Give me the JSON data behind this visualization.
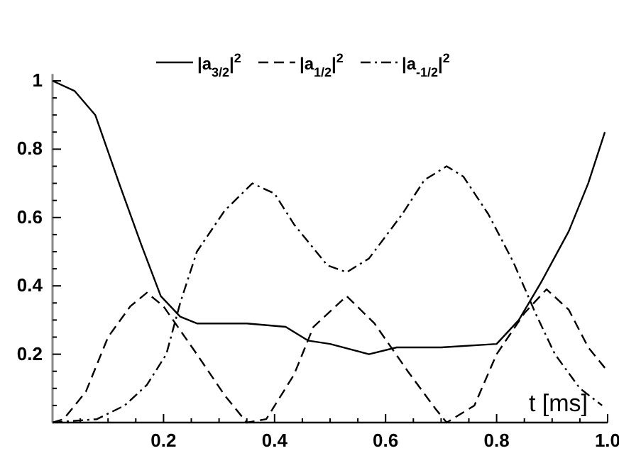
{
  "chart_data": {
    "type": "line",
    "xlabel": "t [ms]",
    "legend": "top",
    "xlim": [
      0,
      1.0
    ],
    "ylim": [
      0,
      1.02
    ],
    "xticks": [
      {
        "value": 0.05,
        "label": null
      },
      {
        "value": 0.1,
        "label": null
      },
      {
        "value": 0.15,
        "label": null
      },
      0.2,
      {
        "value": 0.25,
        "label": null
      },
      {
        "value": 0.3,
        "label": null
      },
      {
        "value": 0.35,
        "label": null
      },
      0.4,
      {
        "value": 0.45,
        "label": null
      },
      {
        "value": 0.5,
        "label": null
      },
      {
        "value": 0.55,
        "label": null
      },
      0.6,
      {
        "value": 0.65,
        "label": null
      },
      {
        "value": 0.7,
        "label": null
      },
      {
        "value": 0.75,
        "label": null
      },
      0.8,
      {
        "value": 0.85,
        "label": null
      },
      {
        "value": 0.9,
        "label": null
      },
      {
        "value": 0.95,
        "label": null
      },
      {
        "value": 1.0,
        "label": "1.0"
      }
    ],
    "yticks": [
      {
        "value": 0.05,
        "label": null
      },
      {
        "value": 0.1,
        "label": null
      },
      {
        "value": 0.15,
        "label": null
      },
      0.2,
      {
        "value": 0.25,
        "label": null
      },
      {
        "value": 0.3,
        "label": null
      },
      {
        "value": 0.35,
        "label": null
      },
      0.4,
      {
        "value": 0.45,
        "label": null
      },
      {
        "value": 0.5,
        "label": null
      },
      {
        "value": 0.55,
        "label": null
      },
      0.6,
      {
        "value": 0.65,
        "label": null
      },
      {
        "value": 0.7,
        "label": null
      },
      {
        "value": 0.75,
        "label": null
      },
      0.8,
      {
        "value": 0.85,
        "label": null
      },
      {
        "value": 0.9,
        "label": null
      },
      {
        "value": 0.95,
        "label": null
      },
      1
    ],
    "series": [
      {
        "name": "|a$_{3/2}$|$^{2}$",
        "color": "#000000",
        "line_style": "solid",
        "x": [
          0,
          0.04,
          0.077,
          0.12,
          0.16,
          0.195,
          0.23,
          0.26,
          0.3,
          0.35,
          0.42,
          0.46,
          0.5,
          0.57,
          0.62,
          0.7,
          0.8,
          0.84,
          0.88,
          0.93,
          0.965,
          0.995
        ],
        "values": [
          1.0,
          0.97,
          0.9,
          0.7,
          0.52,
          0.37,
          0.31,
          0.29,
          0.29,
          0.29,
          0.28,
          0.24,
          0.23,
          0.2,
          0.22,
          0.22,
          0.23,
          0.3,
          0.41,
          0.56,
          0.7,
          0.85
        ]
      },
      {
        "name": "|a$_{1/2}$|$^{2}$",
        "color": "#000000",
        "line_style": "dashed",
        "x": [
          0,
          0.02,
          0.06,
          0.1,
          0.14,
          0.17,
          0.2,
          0.26,
          0.31,
          0.35,
          0.385,
          0.435,
          0.47,
          0.53,
          0.58,
          0.64,
          0.69,
          0.71,
          0.76,
          0.8,
          0.85,
          0.89,
          0.93,
          0.965,
          0.995
        ],
        "values": [
          0,
          0.01,
          0.09,
          0.25,
          0.34,
          0.38,
          0.34,
          0.2,
          0.08,
          0.0,
          0.01,
          0.14,
          0.28,
          0.37,
          0.29,
          0.15,
          0.04,
          0.0,
          0.05,
          0.2,
          0.32,
          0.39,
          0.33,
          0.22,
          0.16
        ]
      },
      {
        "name": "|a$_{-1/2}$|$^{2}$",
        "color": "#000000",
        "line_style": "dashdot",
        "x": [
          0,
          0.08,
          0.13,
          0.17,
          0.205,
          0.23,
          0.26,
          0.31,
          0.36,
          0.4,
          0.435,
          0.495,
          0.53,
          0.57,
          0.63,
          0.67,
          0.71,
          0.74,
          0.785,
          0.83,
          0.87,
          0.905,
          0.95,
          0.99
        ],
        "values": [
          0,
          0.01,
          0.05,
          0.11,
          0.2,
          0.35,
          0.5,
          0.62,
          0.7,
          0.67,
          0.58,
          0.46,
          0.44,
          0.48,
          0.61,
          0.71,
          0.75,
          0.72,
          0.61,
          0.47,
          0.32,
          0.2,
          0.1,
          0.05
        ]
      }
    ]
  }
}
